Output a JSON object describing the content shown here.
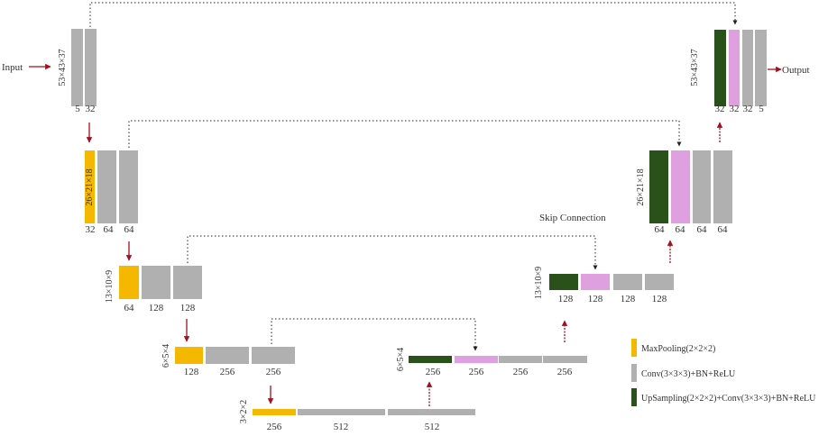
{
  "io": {
    "input": "Input",
    "output": "Output"
  },
  "skip_label": "Skip Connection",
  "colors": {
    "conv": "#b0b0b0",
    "maxpool": "#f5b800",
    "upsample": "#2a5119",
    "skip_block": "#dea0de",
    "arrow": "#a30f1e",
    "text": "#333333"
  },
  "blocks": [
    {
      "id": "enc1-a",
      "type": "conv",
      "label": "5"
    },
    {
      "id": "enc1-b",
      "type": "conv",
      "label": "32"
    },
    {
      "id": "enc2-pool",
      "type": "maxpool",
      "label": "32"
    },
    {
      "id": "enc2-a",
      "type": "conv",
      "label": "64"
    },
    {
      "id": "enc2-b",
      "type": "conv",
      "label": "64"
    },
    {
      "id": "enc3-pool",
      "type": "maxpool",
      "label": "64"
    },
    {
      "id": "enc3-a",
      "type": "conv",
      "label": "128"
    },
    {
      "id": "enc3-b",
      "type": "conv",
      "label": "128"
    },
    {
      "id": "enc4-pool",
      "type": "maxpool",
      "label": "128"
    },
    {
      "id": "enc4-a",
      "type": "conv",
      "label": "256"
    },
    {
      "id": "enc4-b",
      "type": "conv",
      "label": "256"
    },
    {
      "id": "bot-pool",
      "type": "maxpool",
      "label": "256"
    },
    {
      "id": "bot-a",
      "type": "conv",
      "label": "512"
    },
    {
      "id": "bot-b",
      "type": "conv",
      "label": "512"
    },
    {
      "id": "dec4-up",
      "type": "upsample",
      "label": "256"
    },
    {
      "id": "dec4-skip",
      "type": "skip",
      "label": "256"
    },
    {
      "id": "dec4-a",
      "type": "conv",
      "label": "256"
    },
    {
      "id": "dec4-b",
      "type": "conv",
      "label": "256"
    },
    {
      "id": "dec3-up",
      "type": "upsample",
      "label": "128"
    },
    {
      "id": "dec3-skip",
      "type": "skip",
      "label": "128"
    },
    {
      "id": "dec3-a",
      "type": "conv",
      "label": "128"
    },
    {
      "id": "dec3-b",
      "type": "conv",
      "label": "128"
    },
    {
      "id": "dec2-up",
      "type": "upsample",
      "label": "64"
    },
    {
      "id": "dec2-skip",
      "type": "skip",
      "label": "64"
    },
    {
      "id": "dec2-a",
      "type": "conv",
      "label": "64"
    },
    {
      "id": "dec2-b",
      "type": "conv",
      "label": "64"
    },
    {
      "id": "dec1-up",
      "type": "upsample",
      "label": "32"
    },
    {
      "id": "dec1-skip",
      "type": "skip",
      "label": "32"
    },
    {
      "id": "dec1-a",
      "type": "conv",
      "label": "32"
    },
    {
      "id": "dec1-b",
      "type": "conv",
      "label": "5"
    }
  ],
  "dims": [
    {
      "id": "enc1",
      "label": "53×43×37"
    },
    {
      "id": "enc2",
      "label": "26×21×18"
    },
    {
      "id": "enc3",
      "label": "13×10×9"
    },
    {
      "id": "enc4",
      "label": "6×5×4"
    },
    {
      "id": "bot",
      "label": "3×2×2"
    },
    {
      "id": "dec4",
      "label": "6×5×4"
    },
    {
      "id": "dec3",
      "label": "13×10×9"
    },
    {
      "id": "dec2",
      "label": "26×21×18"
    },
    {
      "id": "dec1",
      "label": "53×43×37"
    }
  ],
  "legend": [
    {
      "type": "maxpool",
      "label": "MaxPooling(2×2×2)"
    },
    {
      "type": "conv",
      "label": "Conv(3×3×3)+BN+ReLU"
    },
    {
      "type": "upsample",
      "label": "UpSampling(2×2×2)+Conv(3×3×3)+BN+ReLU"
    }
  ]
}
